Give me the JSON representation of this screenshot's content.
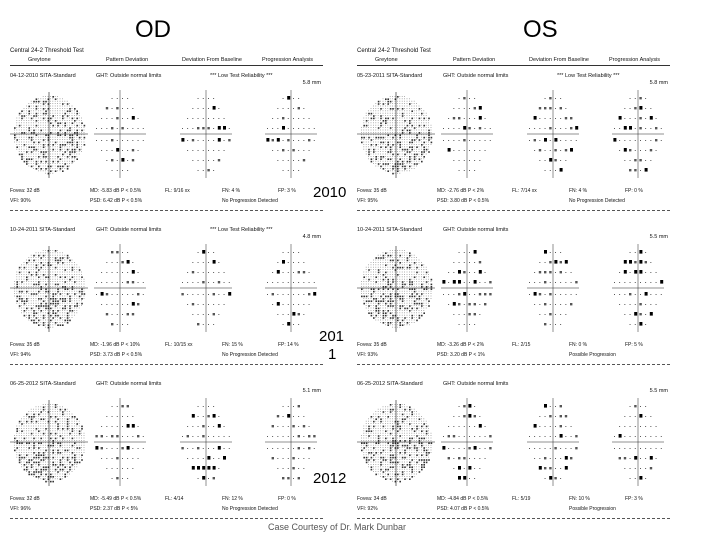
{
  "eyes": {
    "od": "OD",
    "os": "OS"
  },
  "years": {
    "y1": "2010",
    "y2a": "201",
    "y2b": "1",
    "y3": "2012"
  },
  "credit": "Case Courtesy of Dr. Mark Dunbar",
  "od": {
    "header": {
      "title": "Central 24-2 Threshold Test",
      "greytone": "Greytone",
      "pattern": "Pattern Deviation",
      "baseline": "Deviation From Baseline",
      "progression": "Progression Analysis"
    },
    "panels": [
      {
        "exam": "04-12-2010 SITA-Standard",
        "ght": "GHT: Outside normal limits",
        "rel": "*** Low Test Reliability ***",
        "size": "5.8 mm",
        "fovea": "Fovea: 32 dB",
        "vfi": "VFI: 90%",
        "md": "MD: -5.83 dB P < 0.5%",
        "psd": "PSD: 6.42 dB P < 0.5%",
        "fl": "FL: 9/16 xx",
        "fn": "FN: 4 %",
        "fp": "FP: 3 %",
        "prog": "No Progression Detected"
      },
      {
        "exam": "10-24-2011 SITA-Standard",
        "ght": "GHT: Outside normal limits",
        "rel": "*** Low Test Reliability ***",
        "size": "4.8 mm",
        "fovea": "Fovea: 35 dB",
        "vfi": "VFI: 94%",
        "md": "MD: -1.96 dB P < 10%",
        "psd": "PSD: 3.73 dB P < 0.5%",
        "fl": "FL: 10/15 xx",
        "fn": "FN: 15 %",
        "fp": "FP: 14 %",
        "prog": "No Progression Detected"
      },
      {
        "exam": "06-25-2012 SITA-Standard",
        "ght": "GHT: Outside normal limits",
        "rel": "",
        "size": "5.1 mm",
        "fovea": "Fovea: 32 dB",
        "vfi": "VFI: 96%",
        "md": "MD: -5.49 dB P < 0.5%",
        "psd": "PSD: 2.37 dB P < 5%",
        "fl": "FL: 4/14",
        "fn": "FN: 12 %",
        "fp": "FP: 0 %",
        "prog": "No Progression Detected"
      }
    ]
  },
  "os": {
    "header": {
      "title": "Central 24-2 Threshold Test",
      "greytone": "Greytone",
      "pattern": "Pattern Deviation",
      "baseline": "Deviation From Baseline",
      "progression": "Progression Analysis"
    },
    "panels": [
      {
        "exam": "05-23-2011 SITA-Standard",
        "ght": "GHT: Outside normal limits",
        "rel": "*** Low Test Reliability ***",
        "size": "5.8 mm",
        "fovea": "Fovea: 35 dB",
        "vfi": "VFI: 95%",
        "md": "MD: -2.76 dB P < 2%",
        "psd": "PSD: 3.80 dB P < 0.5%",
        "fl": "FL: 7/14 xx",
        "fn": "FN: 4 %",
        "fp": "FP: 0 %",
        "prog": "No Progression Detected"
      },
      {
        "exam": "10-24-2011 SITA-Standard",
        "ght": "GHT: Outside normal limits",
        "rel": "",
        "size": "5.5 mm",
        "fovea": "Fovea: 35 dB",
        "vfi": "VFI: 93%",
        "md": "MD: -3.26 dB P < 2%",
        "psd": "PSD: 3.20 dB P < 1%",
        "fl": "FL: 2/15",
        "fn": "FN: 0 %",
        "fp": "FP: 5 %",
        "prog": "Possible Progression"
      },
      {
        "exam": "06-25-2012 SITA-Standard",
        "ght": "GHT: Outside normal limits",
        "rel": "",
        "size": "5.5 mm",
        "fovea": "Fovea: 34 dB",
        "vfi": "VFI: 92%",
        "md": "MD: -4.84 dB P < 0.5%",
        "psd": "PSD: 4.07 dB P < 0.5%",
        "fl": "FL: 5/19",
        "fn": "FN: 10 %",
        "fp": "FP: 3 %",
        "prog": "Possible Progression"
      }
    ]
  }
}
